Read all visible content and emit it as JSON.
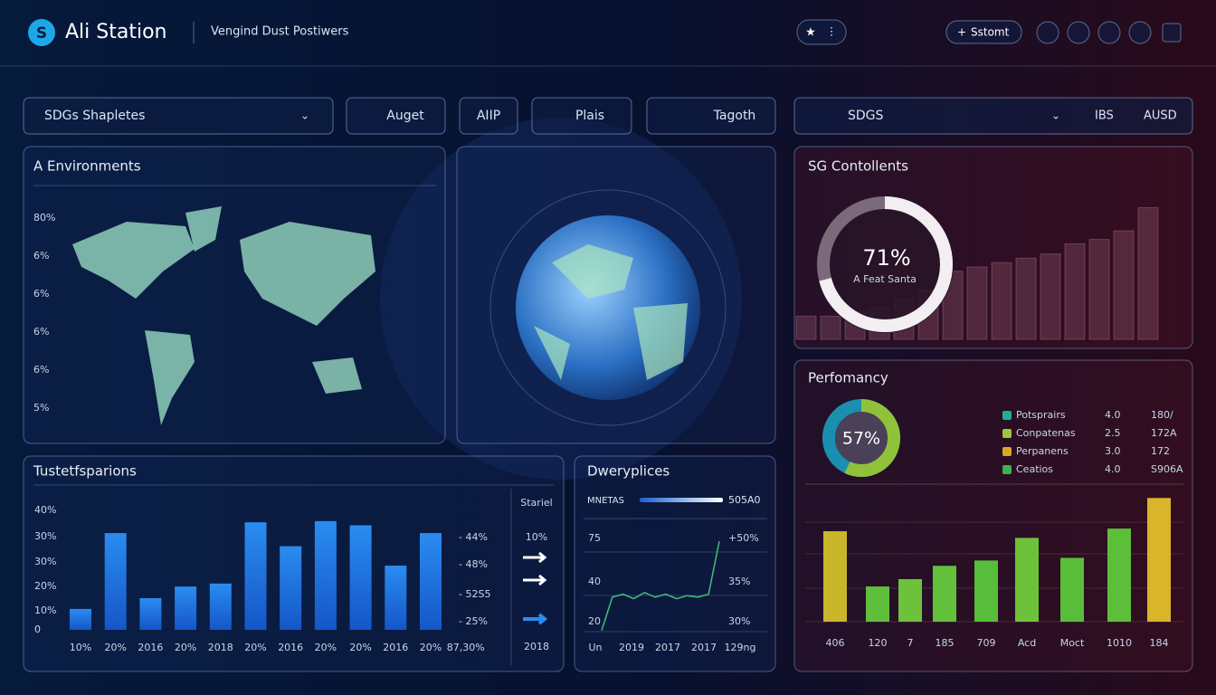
{
  "header": {
    "logo": "S",
    "title": "Ali Station",
    "subtitle": "Vengind Dust Postiwers",
    "button": "Sstomt"
  },
  "toolbar": {
    "dropdown": "SDGs Shapletes",
    "buttons": [
      "Auget",
      "AIIP",
      "Plais",
      "Tagoth"
    ],
    "region": "SDGS",
    "unit_a": "IBS",
    "unit_b": "AUSD"
  },
  "environments": {
    "title": "A Environments",
    "axis_labels": [
      "80%",
      "6%",
      "6%",
      "6%",
      "6%",
      "5%"
    ]
  },
  "contollents": {
    "title": "SG Contollents",
    "value": 71,
    "value_label": "71%",
    "caption": "A Feat Santa",
    "ylim": [
      0,
      100
    ],
    "trend": [
      16,
      16,
      19,
      22,
      28,
      34,
      47,
      50,
      53,
      56,
      59,
      66,
      69,
      75,
      91
    ]
  },
  "transfers": {
    "title": "Tustetfsparions",
    "ylim": [
      0,
      40
    ],
    "values": [
      7,
      32.4,
      10.6,
      14.5,
      15.5,
      36,
      28,
      36.4,
      35,
      21.5,
      32.4
    ],
    "y_labels": [
      "40%",
      "30%",
      "30%",
      "20%",
      "10%",
      "0"
    ],
    "right_labels": [
      "- 44%",
      "- 48%",
      "- 52S5",
      "- 25%"
    ],
    "x_labels": [
      "10%",
      "20%",
      "2016",
      "20%",
      "2018",
      "20%",
      "2016",
      "20%",
      "20%",
      "2016",
      "20%",
      "87,30%"
    ],
    "side_title": "Stariel",
    "side_value": "10%",
    "side_year": "2018"
  },
  "deliveries": {
    "title": "Dweryplices",
    "metric": "MNETAS",
    "metric_value": "505A0",
    "left_labels": [
      "75",
      "40",
      "20"
    ],
    "right_labels": [
      "+50%",
      "35%",
      "30%"
    ],
    "x_labels": [
      "Un",
      "2019",
      "2017",
      "2017",
      "129ng"
    ],
    "ylim": [
      0,
      100
    ],
    "values": [
      14,
      36,
      38,
      35,
      39,
      36,
      38,
      35,
      37,
      36,
      38,
      73
    ]
  },
  "performance": {
    "title": "Perfomancy",
    "value": 57,
    "value_label": "57%",
    "legend": [
      {
        "name": "Potsprairs",
        "color": "#1fae9a",
        "a": "4.0",
        "b": "180/"
      },
      {
        "name": "Conpatenas",
        "color": "#9fc53a",
        "a": "2.5",
        "b": "172A"
      },
      {
        "name": "Perpanens",
        "color": "#d4a92a",
        "a": "3.0",
        "b": "172"
      },
      {
        "name": "Ceatios",
        "color": "#3fb24a",
        "a": "4.0",
        "b": "S906A"
      }
    ],
    "ylim": [
      0,
      100
    ],
    "values": [
      68,
      26.5,
      32,
      42,
      46,
      63,
      48,
      70,
      93
    ],
    "colors": [
      "#c9b62a",
      "#5fbf3a",
      "#6cc23a",
      "#62c03a",
      "#58bd3a",
      "#6ec23a",
      "#58be3a",
      "#5cbf3a",
      "#d8b52a"
    ],
    "x_labels": [
      "406",
      "120",
      "7",
      "185",
      "709",
      "Acd",
      "Moct",
      "1010",
      "184"
    ]
  }
}
